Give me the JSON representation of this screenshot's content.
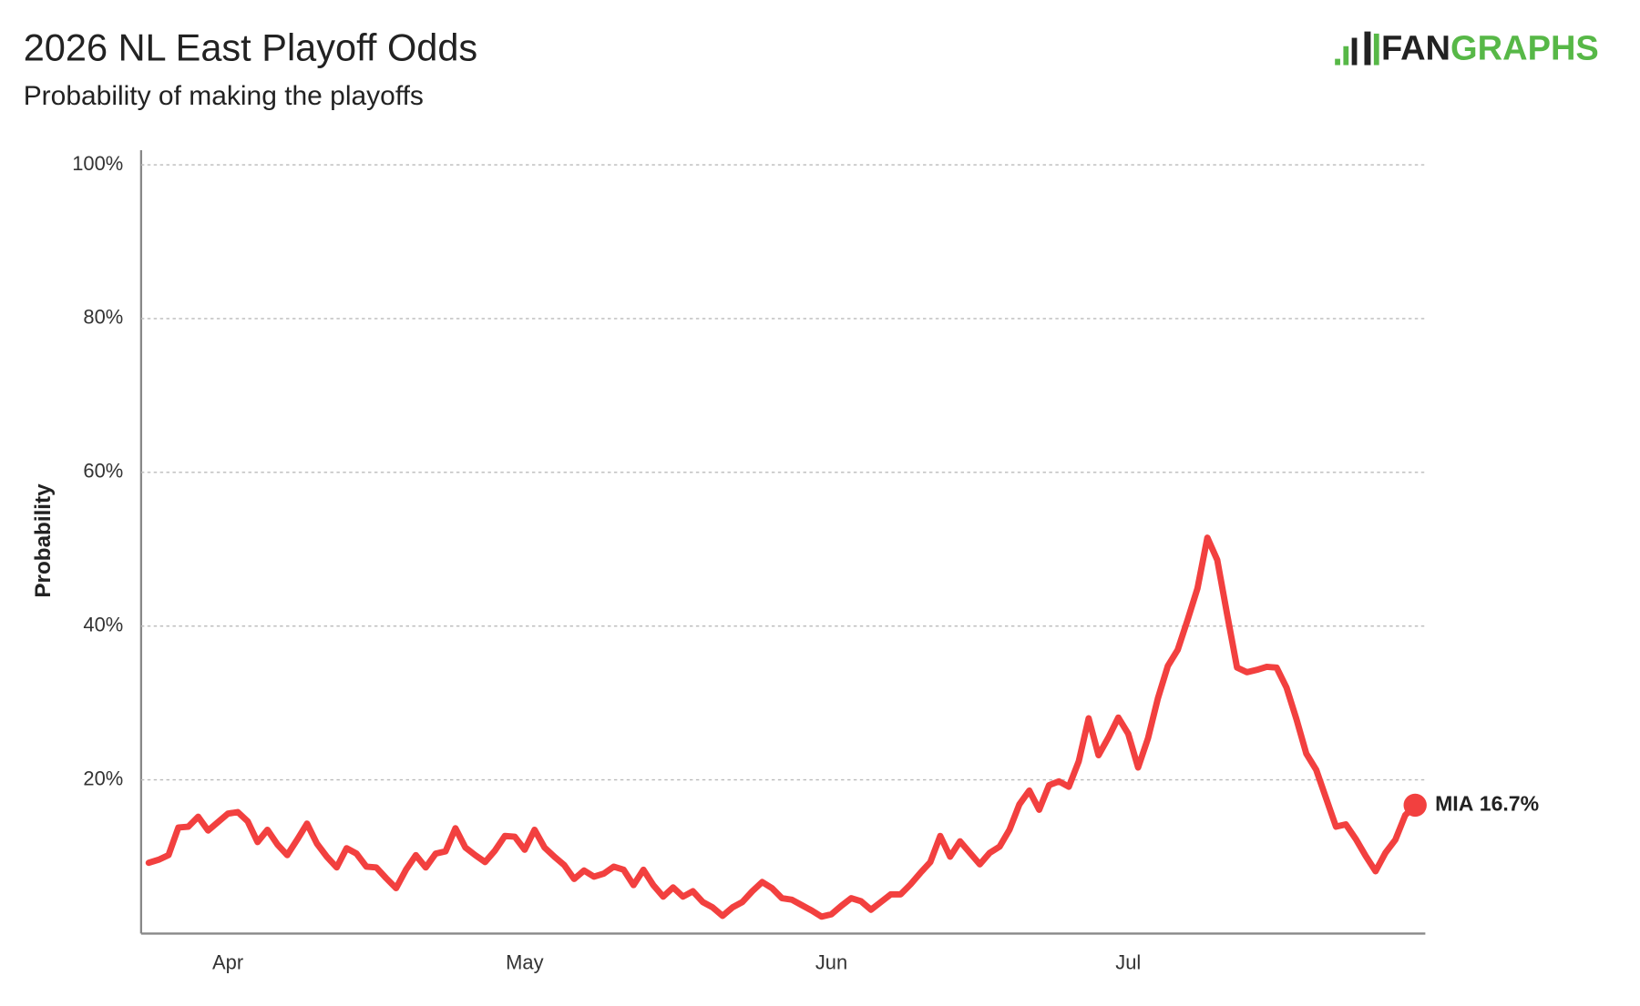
{
  "chart_data": {
    "type": "line",
    "title": "2026 NL East Playoff Odds",
    "subtitle": "Probability of making the playoffs",
    "logo": [
      "FAN",
      "GRAPHS"
    ],
    "y_label": "Probability",
    "categories": [
      null,
      null,
      null,
      null,
      null,
      null,
      null,
      null,
      "Apr",
      null,
      null,
      null,
      null,
      null,
      null,
      null,
      null,
      null,
      null,
      null,
      null,
      null,
      null,
      null,
      null,
      null,
      null,
      null,
      null,
      null,
      null,
      null,
      null,
      null,
      null,
      null,
      null,
      null,
      "May",
      null,
      null,
      null,
      null,
      null,
      null,
      null,
      null,
      null,
      null,
      null,
      null,
      null,
      null,
      null,
      null,
      null,
      null,
      null,
      null,
      null,
      null,
      null,
      null,
      null,
      null,
      null,
      null,
      null,
      null,
      "Jun",
      null,
      null,
      null,
      null,
      null,
      null,
      null,
      null,
      null,
      null,
      null,
      null,
      null,
      null,
      null,
      null,
      null,
      null,
      null,
      null,
      null,
      null,
      null,
      null,
      null,
      null,
      null,
      null,
      null,
      "Jul",
      null,
      null,
      null,
      null,
      null,
      null,
      null,
      null,
      null,
      null,
      null,
      null,
      null,
      null,
      null,
      null,
      null,
      null,
      null,
      null,
      null,
      null,
      null,
      null,
      null,
      null,
      null,
      null,
      null
    ],
    "series": [
      {
        "name": "MIA",
        "color": "#f2403f",
        "values": [
          9.2,
          9.6,
          10.2,
          13.8,
          13.9,
          15.2,
          13.4,
          14.5,
          15.6,
          15.8,
          14.6,
          11.9,
          13.5,
          11.6,
          10.2,
          12.2,
          14.3,
          11.7,
          10.0,
          8.6,
          11.1,
          10.4,
          8.7,
          8.6,
          7.2,
          5.9,
          8.3,
          10.2,
          8.6,
          10.4,
          10.7,
          13.7,
          11.2,
          10.2,
          9.3,
          10.8,
          12.7,
          12.6,
          10.9,
          13.5,
          11.2,
          10.0,
          8.9,
          7.1,
          8.2,
          7.4,
          7.8,
          8.7,
          8.3,
          6.3,
          8.3,
          6.3,
          4.8,
          6.0,
          4.8,
          5.5,
          4.1,
          3.4,
          2.3,
          3.4,
          4.1,
          5.5,
          6.7,
          5.9,
          4.6,
          4.4,
          3.7,
          3.0,
          2.2,
          2.5,
          3.6,
          4.6,
          4.2,
          3.1,
          4.1,
          5.1,
          5.1,
          6.4,
          7.9,
          9.3,
          12.7,
          10.0,
          12.0,
          10.5,
          9.0,
          10.5,
          11.3,
          13.5,
          16.8,
          18.6,
          16.1,
          19.3,
          19.8,
          19.1,
          22.4,
          28.0,
          23.2,
          25.5,
          28.1,
          26.0,
          21.6,
          25.4,
          30.6,
          34.8,
          36.9,
          40.8,
          44.9,
          51.5,
          48.6,
          41.5,
          34.6,
          34.0,
          34.3,
          34.7,
          34.6,
          32.0,
          27.9,
          23.4,
          21.3,
          17.6,
          13.9,
          14.2,
          12.3,
          10.1,
          8.1,
          10.5,
          12.2,
          15.4,
          16.7
        ],
        "value_labels": [
          null,
          null,
          null,
          null,
          null,
          null,
          null,
          null,
          null,
          null,
          null,
          null,
          null,
          null,
          null,
          null,
          null,
          null,
          null,
          null,
          null,
          null,
          null,
          null,
          null,
          null,
          null,
          null,
          null,
          null,
          null,
          null,
          null,
          null,
          null,
          null,
          null,
          null,
          null,
          null,
          null,
          null,
          null,
          null,
          null,
          null,
          null,
          null,
          null,
          null,
          null,
          null,
          null,
          null,
          null,
          null,
          null,
          null,
          null,
          null,
          null,
          null,
          null,
          null,
          null,
          null,
          null,
          null,
          null,
          null,
          null,
          null,
          null,
          null,
          null,
          null,
          null,
          null,
          null,
          null,
          null,
          null,
          null,
          null,
          null,
          null,
          null,
          null,
          null,
          null,
          null,
          null,
          null,
          null,
          null,
          null,
          null,
          null,
          null,
          null,
          null,
          null,
          null,
          null,
          null,
          null,
          null,
          null,
          null,
          null,
          null,
          null,
          null,
          null,
          null,
          null,
          null,
          null,
          null,
          null,
          null,
          null,
          null,
          null,
          null,
          null,
          null,
          null,
          "16.7%"
        ]
      }
    ],
    "ylim": [
      0,
      100
    ],
    "yticks": [
      {
        "value": 20,
        "label": "20%"
      },
      {
        "value": 40,
        "label": "40%"
      },
      {
        "value": 60,
        "label": "60%"
      },
      {
        "value": 80,
        "label": "80%"
      },
      {
        "value": 100,
        "label": "100%"
      }
    ],
    "grid": true
  }
}
